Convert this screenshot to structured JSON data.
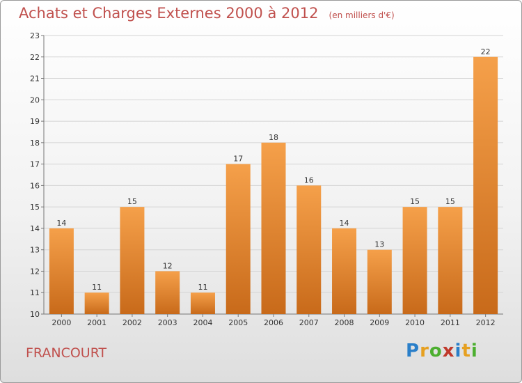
{
  "title": "Achats et Charges Externes 2000 à 2012",
  "unit_note": "(en milliers d'€)",
  "commune": "FRANCOURT",
  "logo": {
    "letters": [
      "P",
      "r",
      "o",
      "x",
      "i",
      "t",
      "i"
    ],
    "colors": [
      "#2a7fc9",
      "#e6a020",
      "#4caf2f",
      "#c0392b",
      "#2a7fc9",
      "#e6a020",
      "#4caf2f"
    ]
  },
  "colors": {
    "title": "#c0504d",
    "bar_top": "#f5a04a",
    "bar_bottom": "#c86a1a"
  },
  "chart_data": {
    "type": "bar",
    "categories": [
      "2000",
      "2001",
      "2002",
      "2003",
      "2004",
      "2005",
      "2006",
      "2007",
      "2008",
      "2009",
      "2010",
      "2011",
      "2012"
    ],
    "values": [
      14,
      11,
      15,
      12,
      11,
      17,
      18,
      16,
      14,
      13,
      15,
      15,
      22
    ],
    "ylim": [
      10,
      23
    ],
    "yticks": [
      10,
      11,
      12,
      13,
      14,
      15,
      16,
      17,
      18,
      19,
      20,
      21,
      22,
      23
    ],
    "grid": true
  }
}
